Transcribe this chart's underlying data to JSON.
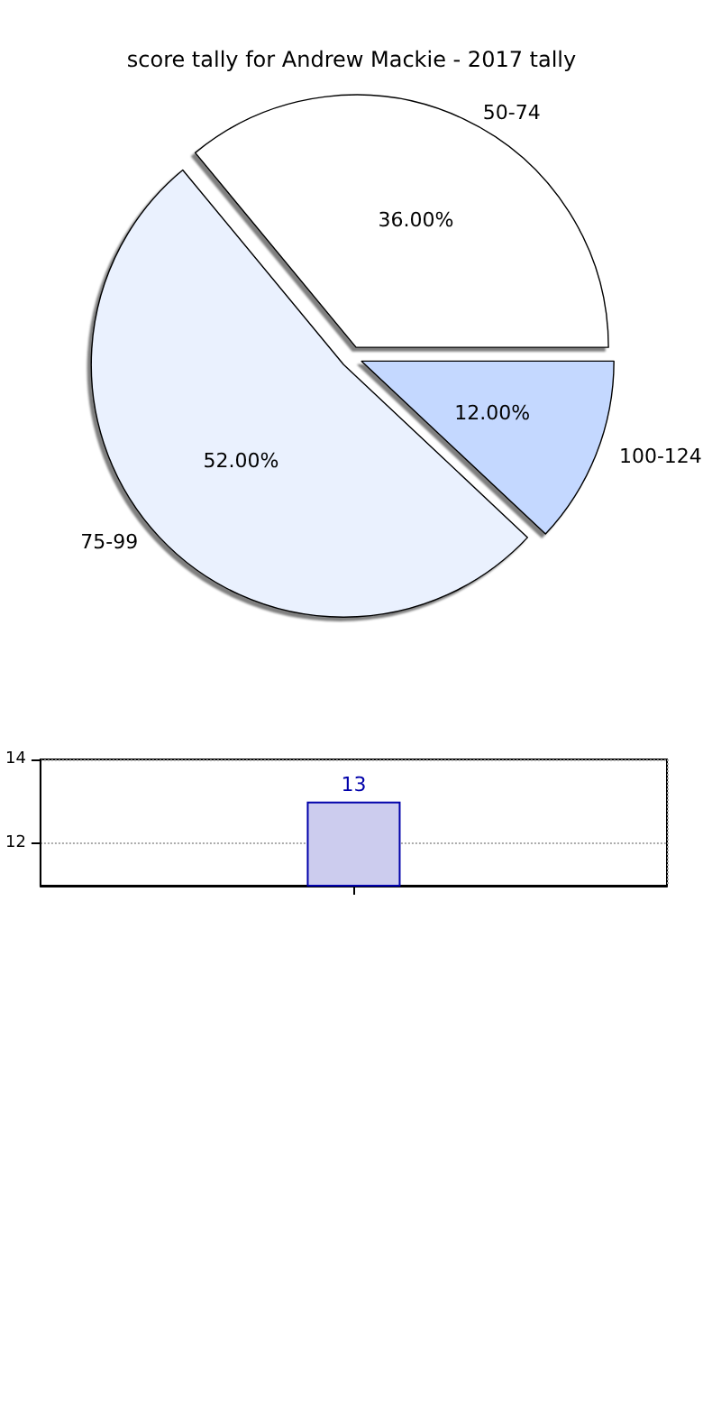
{
  "chart_data": [
    {
      "type": "pie",
      "title": "score tally for Andrew Mackie - 2017 tally",
      "categories": [
        "50-74",
        "75-99",
        "100-124"
      ],
      "values": [
        36,
        52,
        12
      ],
      "colors": [
        "#ffffff",
        "#eaf1fe",
        "#c4d8ff"
      ],
      "value_labels": [
        "36.00%",
        "52.00%",
        "12.00%"
      ]
    },
    {
      "type": "bar",
      "categories": [
        null
      ],
      "values": [
        13
      ],
      "color": "#ccccee",
      "ylim": [
        11,
        14
      ],
      "yticks": [
        12,
        14
      ],
      "grid": true,
      "data_labels": true,
      "tick_labels": "y"
    }
  ]
}
